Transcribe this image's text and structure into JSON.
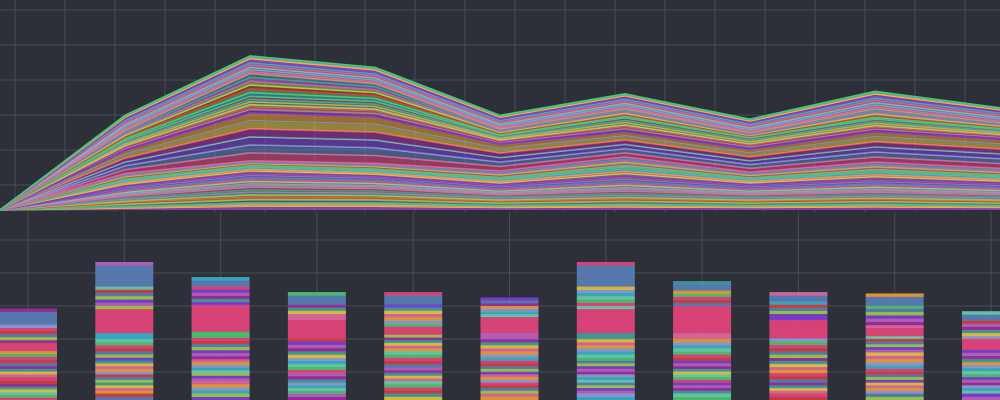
{
  "theme": {
    "background": "#2d3038",
    "grid": "#484c57",
    "palette": [
      "#e8457c",
      "#5a7fb8",
      "#7b3fd6",
      "#9b2f9e",
      "#e8c83a",
      "#f0a030",
      "#3ab0c8",
      "#4cc870",
      "#d04040",
      "#a0d040",
      "#c060c0",
      "#40a0a0",
      "#e06aa0",
      "#8fa0d8",
      "#6ad0b0"
    ]
  },
  "chart_data": [
    {
      "type": "area",
      "stacked": true,
      "title": "",
      "xlabel": "",
      "ylabel": "",
      "x": [
        0,
        1,
        2,
        3,
        4,
        5,
        6,
        7,
        8
      ],
      "grid": true,
      "legend": "none",
      "series": [
        {
          "values": [
            0,
            3,
            6,
            6,
            4,
            5,
            4,
            5,
            4
          ]
        },
        {
          "values": [
            0,
            8,
            12,
            11,
            8,
            10,
            8,
            9,
            8
          ]
        },
        {
          "values": [
            0,
            6,
            9,
            8,
            6,
            9,
            6,
            8,
            7
          ]
        },
        {
          "values": [
            0,
            7,
            8,
            7,
            7,
            10,
            7,
            9,
            8
          ]
        },
        {
          "values": [
            0,
            5,
            4,
            5,
            6,
            8,
            5,
            7,
            6
          ]
        },
        {
          "values": [
            0,
            18,
            38,
            37,
            21,
            20,
            18,
            24,
            23
          ]
        },
        {
          "values": [
            0,
            8,
            13,
            12,
            7,
            11,
            9,
            10,
            8
          ]
        },
        {
          "values": [
            0,
            8,
            18,
            14,
            5,
            7,
            4,
            8,
            5
          ]
        },
        {
          "values": [
            0,
            9,
            10,
            9,
            8,
            9,
            8,
            10,
            9
          ]
        },
        {
          "values": [
            0,
            3,
            4,
            4,
            3,
            3,
            3,
            4,
            3
          ]
        }
      ]
    },
    {
      "type": "bar",
      "stacked": true,
      "title": "",
      "xlabel": "",
      "ylabel": "",
      "categories": [
        "",
        "",
        "",
        "",
        "",
        "",
        "",
        "",
        "",
        "",
        ""
      ],
      "grid": true,
      "legend": "none",
      "series": [
        {
          "values": [
            6,
            5,
            5,
            5,
            5,
            5,
            5,
            5,
            5,
            5,
            5
          ]
        },
        {
          "values": [
            6,
            8,
            9,
            8,
            9,
            8,
            8,
            8,
            8,
            8,
            6
          ]
        },
        {
          "values": [
            5,
            6,
            6,
            7,
            10,
            6,
            6,
            6,
            7,
            10,
            6
          ]
        },
        {
          "values": [
            8,
            10,
            10,
            11,
            12,
            10,
            10,
            10,
            11,
            12,
            11
          ]
        },
        {
          "values": [
            9,
            18,
            18,
            12,
            10,
            18,
            18,
            18,
            12,
            10,
            9
          ]
        },
        {
          "values": [
            10,
            22,
            24,
            18,
            10,
            14,
            22,
            22,
            18,
            10,
            10
          ]
        },
        {
          "values": [
            9,
            12,
            9,
            9,
            12,
            8,
            12,
            9,
            9,
            12,
            9
          ]
        },
        {
          "values": [
            14,
            20,
            9,
            9,
            11,
            6,
            20,
            9,
            9,
            11,
            9
          ]
        }
      ]
    }
  ]
}
